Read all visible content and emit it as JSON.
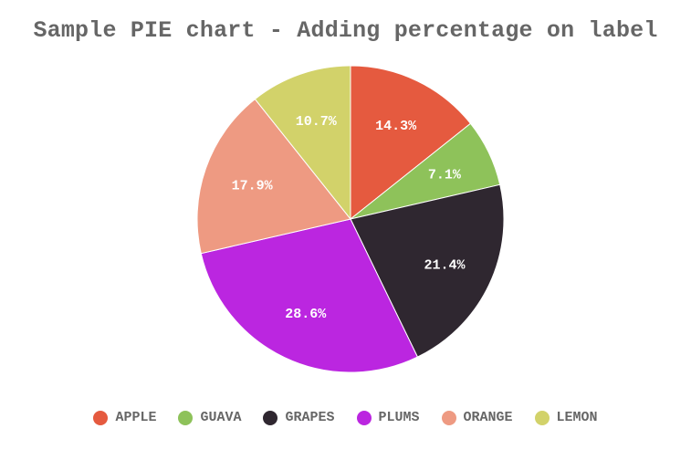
{
  "chart_data": {
    "type": "pie",
    "title": "Sample PIE chart - Adding percentage on label",
    "categories": [
      "APPLE",
      "GUAVA",
      "GRAPES",
      "PLUMS",
      "ORANGE",
      "LEMON"
    ],
    "values": [
      14.3,
      7.1,
      21.4,
      28.6,
      17.9,
      10.7
    ],
    "labels": [
      "14.3%",
      "7.1%",
      "21.4%",
      "28.6%",
      "17.9%",
      "10.7%"
    ],
    "colors": [
      "#e55a3f",
      "#8ec25a",
      "#2f2730",
      "#bb26e0",
      "#ee9a82",
      "#d2d26a"
    ],
    "legend_position": "bottom",
    "start_angle": "12 o'clock, clockwise"
  },
  "title": "Sample PIE chart - Adding percentage on label",
  "legend": [
    {
      "label": "APPLE",
      "color": "#e55a3f"
    },
    {
      "label": "GUAVA",
      "color": "#8ec25a"
    },
    {
      "label": "GRAPES",
      "color": "#2f2730"
    },
    {
      "label": "PLUMS",
      "color": "#bb26e0"
    },
    {
      "label": "ORANGE",
      "color": "#ee9a82"
    },
    {
      "label": "LEMON",
      "color": "#d2d26a"
    }
  ]
}
